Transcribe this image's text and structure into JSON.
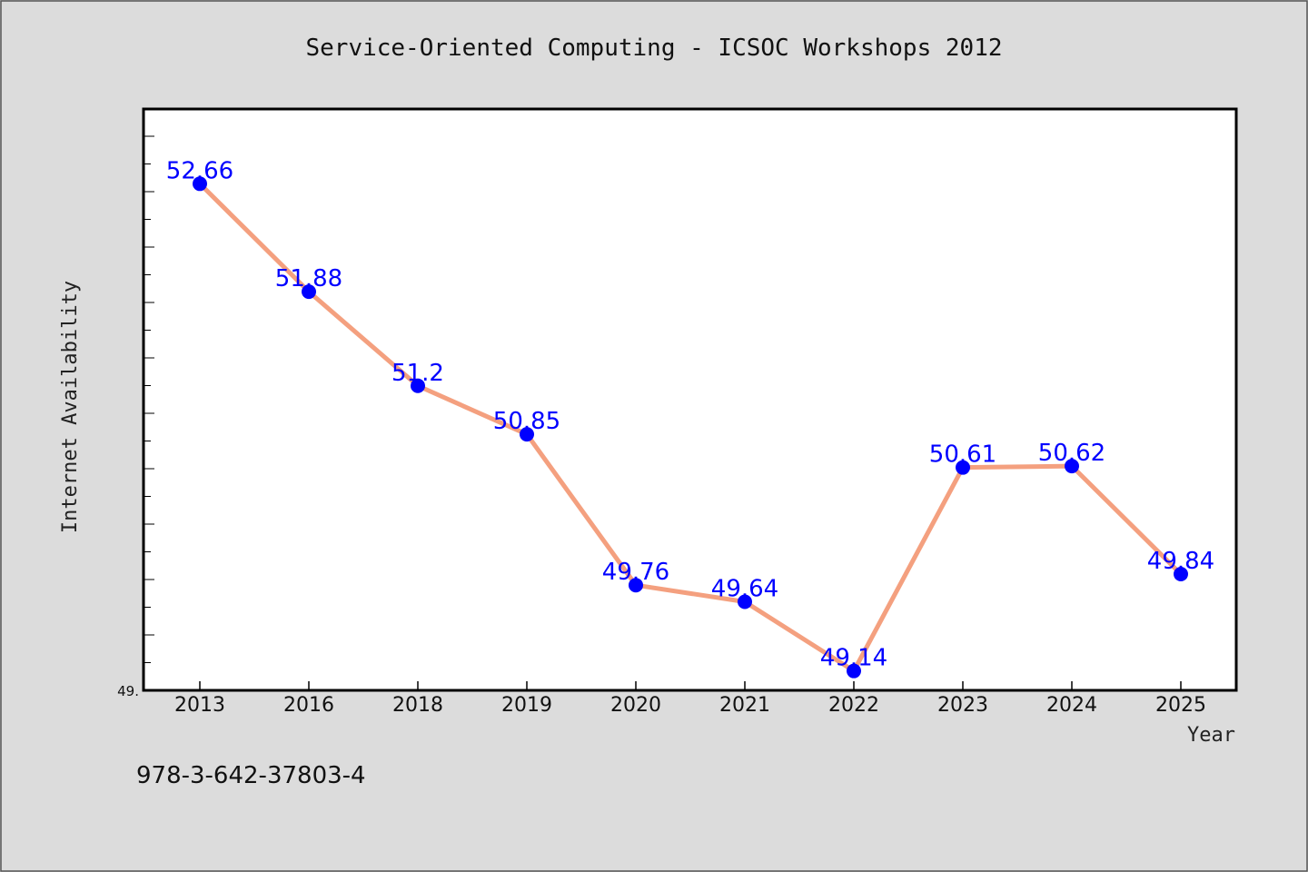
{
  "chart_data": {
    "type": "line",
    "title": "Service-Oriented Computing - ICSOC Workshops 2012",
    "xlabel": "Year",
    "ylabel": "Internet Availability",
    "categories": [
      "2013",
      "2016",
      "2018",
      "2019",
      "2020",
      "2021",
      "2022",
      "2023",
      "2024",
      "2025"
    ],
    "series": [
      {
        "values": [
          52.66,
          51.88,
          51.2,
          50.85,
          49.76,
          49.64,
          49.14,
          50.61,
          50.62,
          49.84
        ]
      }
    ],
    "data_labels": [
      "52.66",
      "51.88",
      "51.2",
      "50.85",
      "49.76",
      "49.64",
      "49.14",
      "50.61",
      "50.62",
      "49.84"
    ],
    "ylim": [
      49.0,
      53.2
    ],
    "y_min_label": "49.",
    "grid": false,
    "legend": "none",
    "colors": {
      "line": "#f4a07f",
      "marker": "#0000ff",
      "data_label": "#0000ff",
      "plot_background": "#ffffff",
      "figure_background": "#dcdcdc"
    }
  },
  "footer": {
    "isbn": "978-3-642-37803-4"
  }
}
